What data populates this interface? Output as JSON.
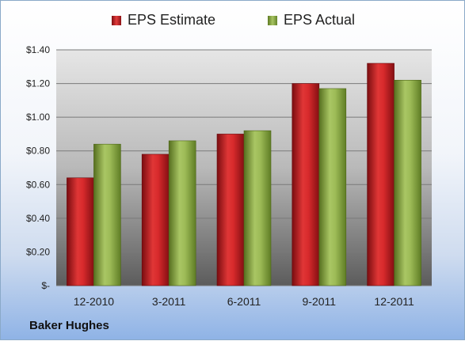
{
  "chart_data": {
    "type": "bar",
    "title": "",
    "xlabel": "",
    "ylabel": "",
    "categories": [
      "12-2010",
      "3-2011",
      "6-2011",
      "9-2011",
      "12-2011"
    ],
    "series": [
      {
        "name": "EPS Estimate",
        "values": [
          0.64,
          0.78,
          0.9,
          1.2,
          1.32
        ],
        "color": "#c0161c"
      },
      {
        "name": "EPS Actual",
        "values": [
          0.84,
          0.86,
          0.92,
          1.17,
          1.22
        ],
        "color": "#8fb04a"
      }
    ],
    "ylim": [
      0,
      1.4
    ],
    "yticks": [
      "$-",
      "$0.20",
      "$0.40",
      "$0.60",
      "$0.80",
      "$1.00",
      "$1.20",
      "$1.40"
    ],
    "legend": "top-center",
    "grid": true
  },
  "company": "Baker Hughes",
  "colors": {
    "plot_top": "#e4e4e4",
    "plot_bottom": "#5e5e5e",
    "grid": "#7a7a7a"
  }
}
